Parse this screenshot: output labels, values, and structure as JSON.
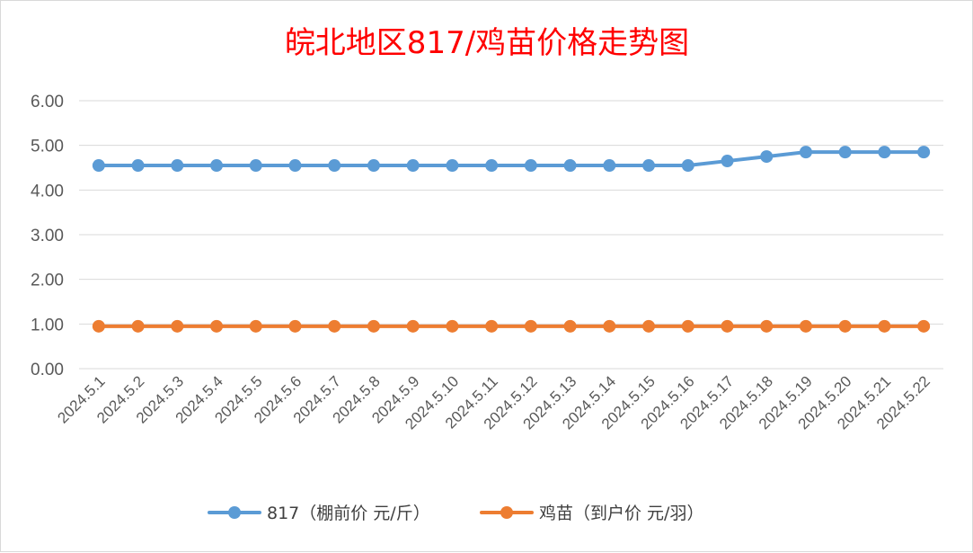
{
  "chart_data": {
    "type": "line",
    "title": "皖北地区817/鸡苗价格走势图",
    "categories": [
      "2024.5.1",
      "2024.5.2",
      "2024.5.3",
      "2024.5.4",
      "2024.5.5",
      "2024.5.6",
      "2024.5.7",
      "2024.5.8",
      "2024.5.9",
      "2024.5.10",
      "2024.5.11",
      "2024.5.12",
      "2024.5.13",
      "2024.5.14",
      "2024.5.15",
      "2024.5.16",
      "2024.5.17",
      "2024.5.18",
      "2024.5.19",
      "2024.5.20",
      "2024.5.21",
      "2024.5.22"
    ],
    "series": [
      {
        "name": "817（棚前价 元/斤）",
        "color": "#5b9bd5",
        "values": [
          4.55,
          4.55,
          4.55,
          4.55,
          4.55,
          4.55,
          4.55,
          4.55,
          4.55,
          4.55,
          4.55,
          4.55,
          4.55,
          4.55,
          4.55,
          4.55,
          4.65,
          4.75,
          4.85,
          4.85,
          4.85,
          4.85
        ]
      },
      {
        "name": "鸡苗（到户价 元/羽）",
        "color": "#ed7d31",
        "values": [
          0.95,
          0.95,
          0.95,
          0.95,
          0.95,
          0.95,
          0.95,
          0.95,
          0.95,
          0.95,
          0.95,
          0.95,
          0.95,
          0.95,
          0.95,
          0.95,
          0.95,
          0.95,
          0.95,
          0.95,
          0.95,
          0.95
        ]
      }
    ],
    "y_ticks": [
      "0.00",
      "1.00",
      "2.00",
      "3.00",
      "4.00",
      "5.00",
      "6.00"
    ],
    "ylim": [
      0,
      6
    ],
    "grid": true,
    "legend": "bottom",
    "title_color": "#ff0000"
  }
}
